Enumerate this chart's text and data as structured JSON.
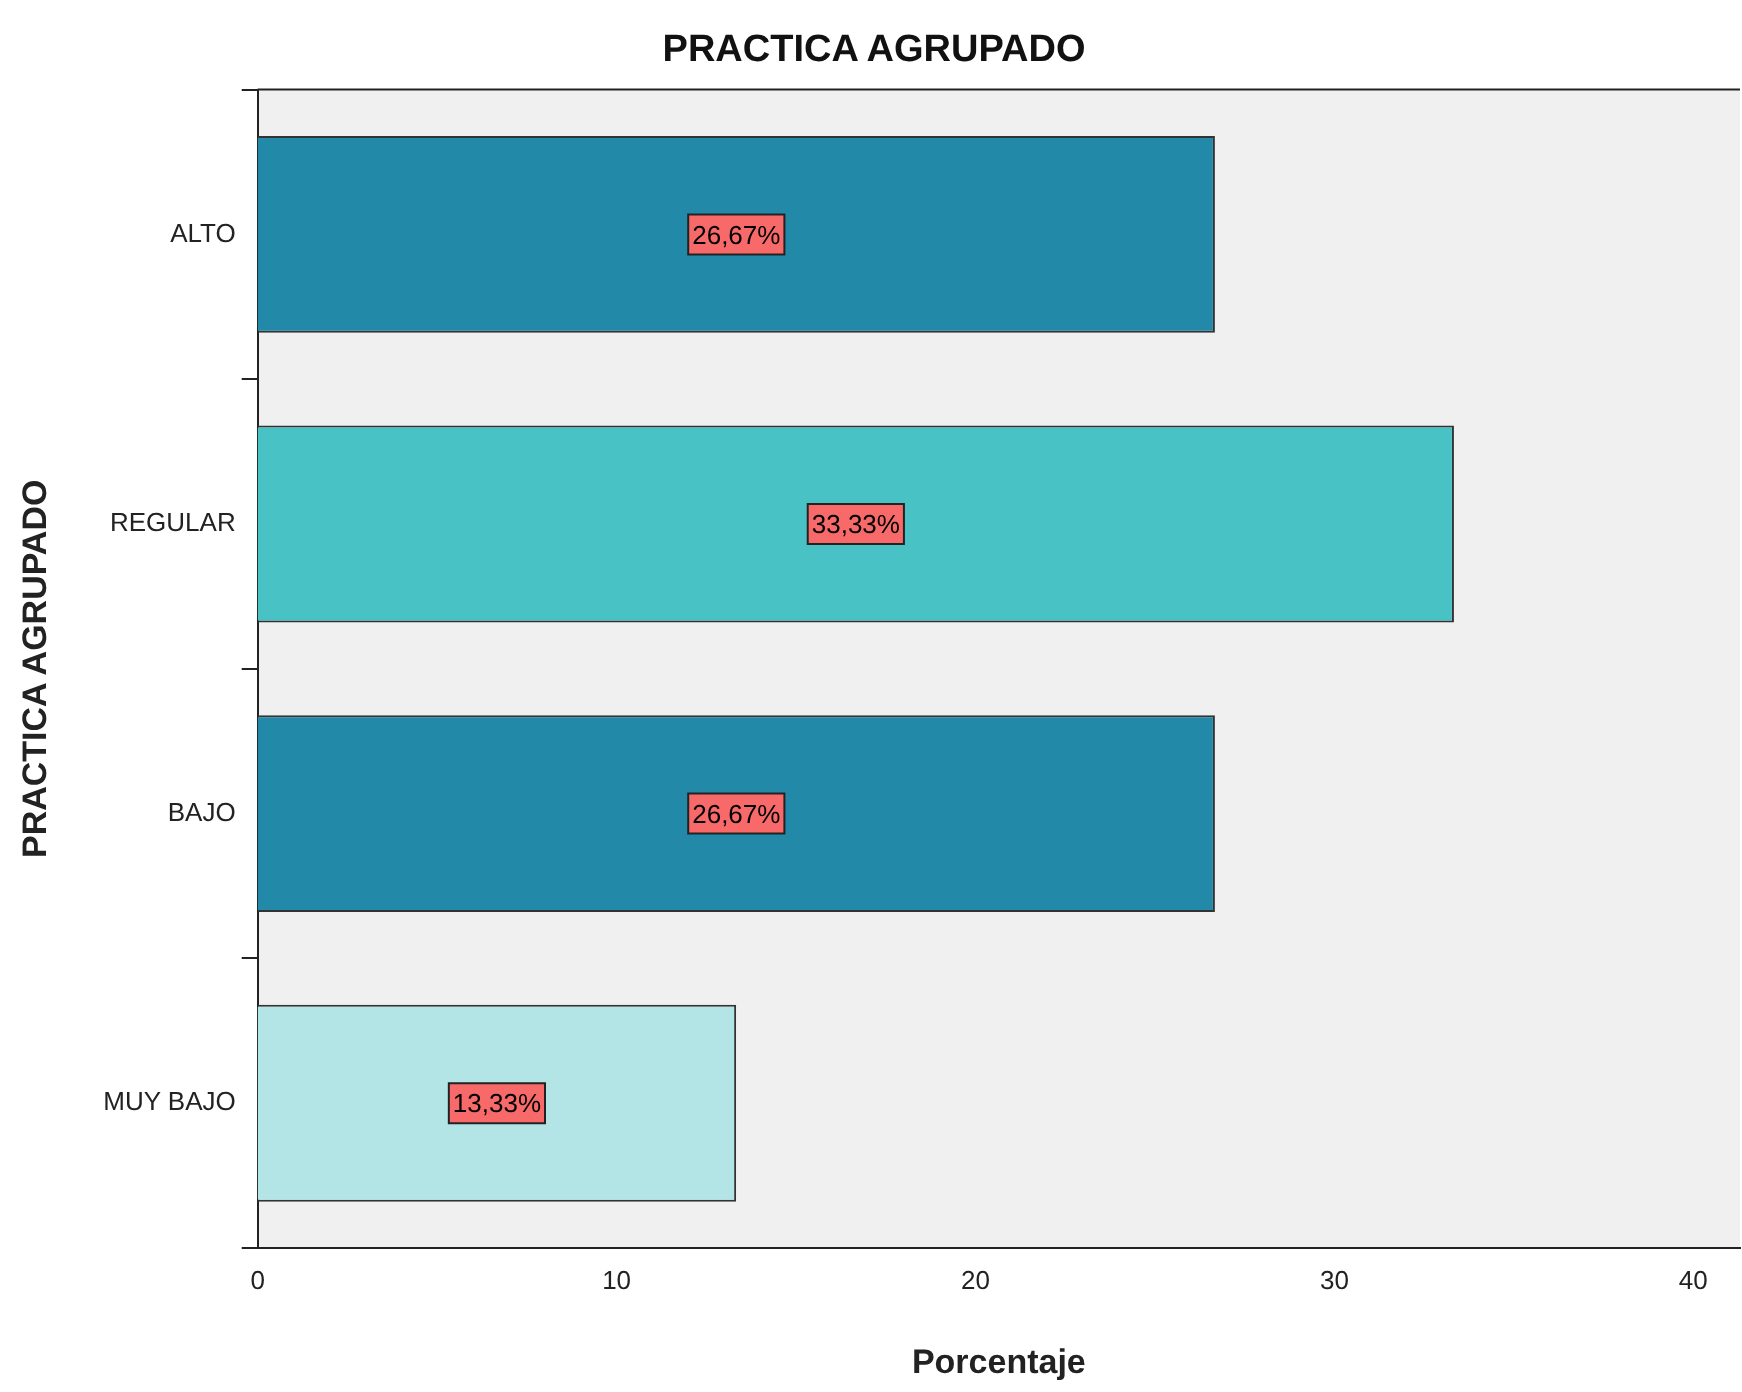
{
  "chart_data": {
    "type": "bar",
    "orientation": "horizontal",
    "title": "PRACTICA AGRUPADO",
    "xlabel": "Porcentaje",
    "ylabel": "PRACTICA AGRUPADO",
    "categories": [
      "ALTO",
      "REGULAR",
      "BAJO",
      "MUY BAJO"
    ],
    "values": [
      26.67,
      33.33,
      26.67,
      13.33
    ],
    "colors": [
      "#2389a8",
      "#48c2c5",
      "#2389a8",
      "#b3e5e6"
    ],
    "value_labels": [
      "26,67%",
      "33,33%",
      "26,67%",
      "13,33%"
    ],
    "xlim": [
      0,
      41.3
    ],
    "xticks": [
      0,
      10,
      20,
      30,
      40
    ],
    "grid": false,
    "legend": false
  }
}
